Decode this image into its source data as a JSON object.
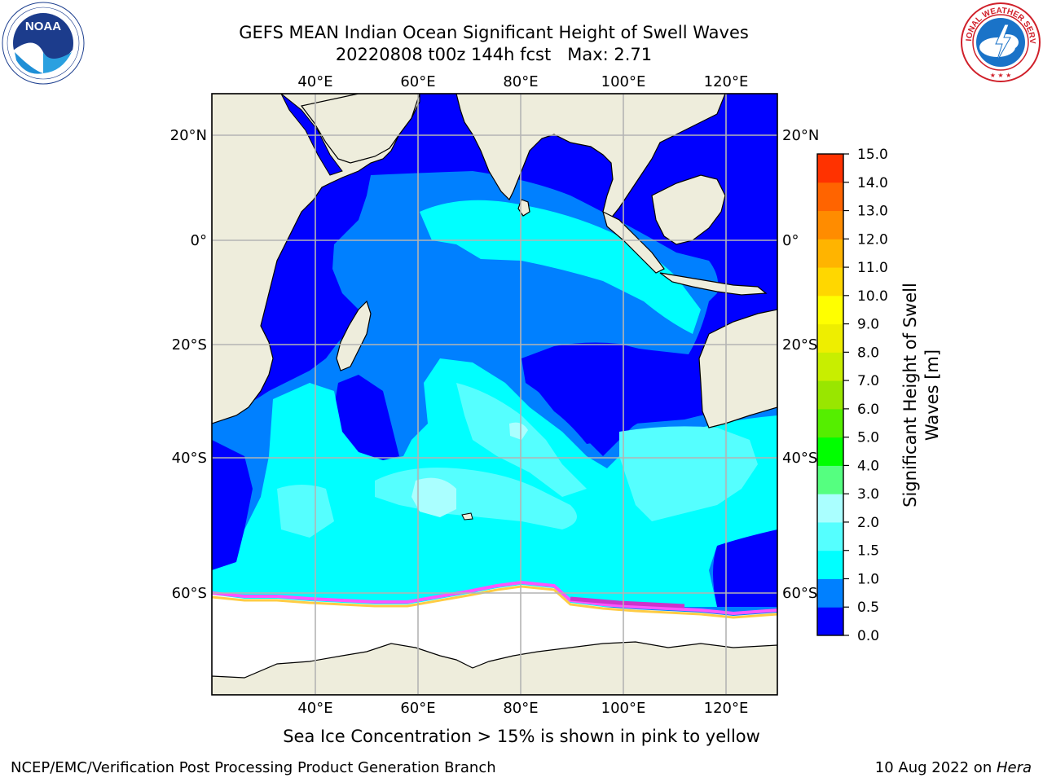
{
  "title": {
    "line1": "GEFS MEAN Indian Ocean Significant Height of Swell Waves",
    "line2": "20220808 t00z 144h fcst   Max: 2.71"
  },
  "logos": {
    "left": {
      "name": "noaa-logo",
      "text": "NOAA"
    },
    "right": {
      "name": "national-weather-service-logo",
      "text": "NATIONAL WEATHER SERVICE"
    }
  },
  "map": {
    "lon_labels_top": [
      "40°E",
      "60°E",
      "80°E",
      "100°E",
      "120°E"
    ],
    "lon_labels_bottom": [
      "40°E",
      "60°E",
      "80°E",
      "100°E",
      "120°E"
    ],
    "lat_labels_left": [
      "20°N",
      "0°",
      "20°S",
      "40°S",
      "60°S"
    ],
    "lat_labels_right": [
      "20°N",
      "0°",
      "20°S",
      "40°S",
      "60°S"
    ],
    "colors": {
      "land": "#eeeddc",
      "ice": "#ffffff",
      "grid": "#b4b4b4",
      "coast": "#000000"
    }
  },
  "colorbar": {
    "title": "Significant Height of Swell Waves [m]",
    "title_line1": "Significant Height of Swell",
    "title_line2": "Waves [m]",
    "tick_labels": [
      "0.0",
      "0.5",
      "1.0",
      "1.5",
      "2.0",
      "3.0",
      "4.0",
      "5.0",
      "6.0",
      "7.0",
      "8.0",
      "9.0",
      "10.0",
      "11.0",
      "12.0",
      "13.0",
      "14.0",
      "15.0"
    ],
    "colors": [
      "#0000ff",
      "#0080ff",
      "#00ffff",
      "#55ffff",
      "#aaffff",
      "#55ff80",
      "#00ff00",
      "#55ee00",
      "#99e600",
      "#c8ee00",
      "#eeee00",
      "#ffff00",
      "#ffd700",
      "#ffb400",
      "#ff8c00",
      "#ff6400",
      "#ff3200"
    ]
  },
  "caption": "Sea Ice Concentration > 15% is shown in pink to yellow",
  "footer": {
    "left": "NCEP/EMC/Verification Post Processing Product Generation Branch",
    "right_prefix": "10 Aug 2022 on ",
    "right_italic": "Hera"
  }
}
